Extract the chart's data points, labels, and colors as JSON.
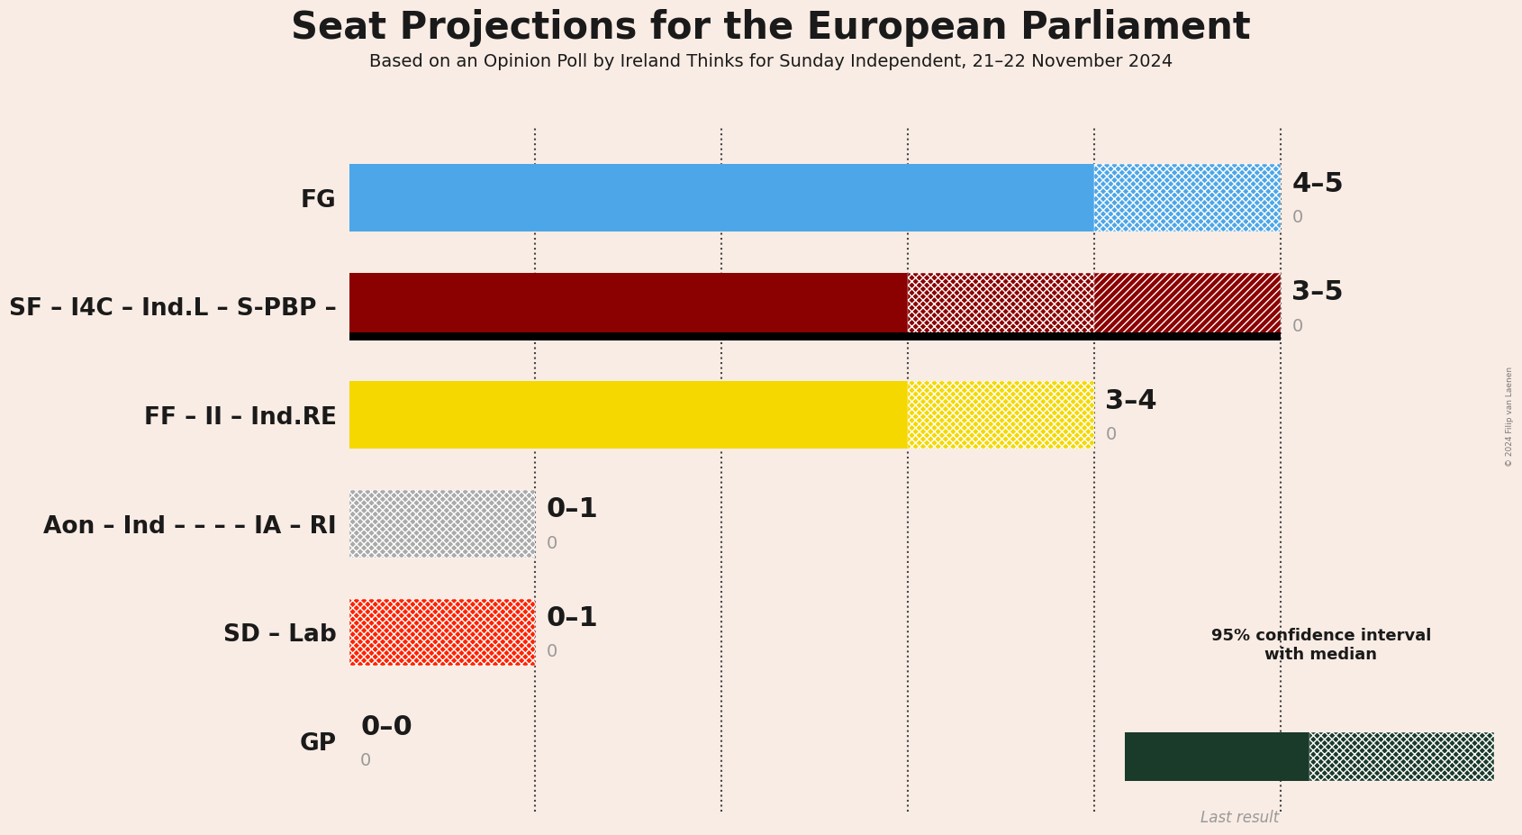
{
  "title": "Seat Projections for the European Parliament",
  "subtitle": "Based on an Opinion Poll by Ireland Thinks for Sunday Independent, 21–22 November 2024",
  "copyright": "© 2024 Filip van Laenen",
  "background_color": "#f9ece4",
  "parties": [
    {
      "name": "FG",
      "color": "#4da6e8",
      "median": 4,
      "ci_low": 4,
      "ci_high": 5,
      "last_result": 0,
      "label": "4–5",
      "black_bar": false
    },
    {
      "name": "SF – I4C – Ind.L – S-PBP –",
      "color": "#8b0000",
      "median": 3,
      "ci_low": 3,
      "ci_high": 5,
      "last_result": 0,
      "label": "3–5",
      "black_bar": true,
      "ci_mid": 4
    },
    {
      "name": "FF – II – Ind.RE",
      "color": "#f5d800",
      "median": 3,
      "ci_low": 3,
      "ci_high": 4,
      "last_result": 0,
      "label": "3–4",
      "black_bar": false
    },
    {
      "name": "Aon – Ind – – – – IA – RI",
      "color": "#aaaaaa",
      "median": 0,
      "ci_low": 0,
      "ci_high": 1,
      "last_result": 0,
      "label": "0–1",
      "black_bar": false
    },
    {
      "name": "SD – Lab",
      "color": "#ff2200",
      "median": 0,
      "ci_low": 0,
      "ci_high": 1,
      "last_result": 0,
      "label": "0–1",
      "black_bar": false
    },
    {
      "name": "GP",
      "color": "#2e7d32",
      "median": 0,
      "ci_low": 0,
      "ci_high": 0,
      "last_result": 0,
      "label": "0–0",
      "black_bar": false
    }
  ],
  "xlim": [
    0,
    5.5
  ],
  "grid_ticks": [
    1,
    2,
    3,
    4,
    5
  ],
  "bar_height": 0.62,
  "last_result_color": "#999999",
  "legend_dark_color": "#1a3a2a",
  "title_fontsize": 30,
  "subtitle_fontsize": 14,
  "label_fontsize": 22,
  "party_label_fontsize": 19,
  "annotation_fontsize": 14
}
